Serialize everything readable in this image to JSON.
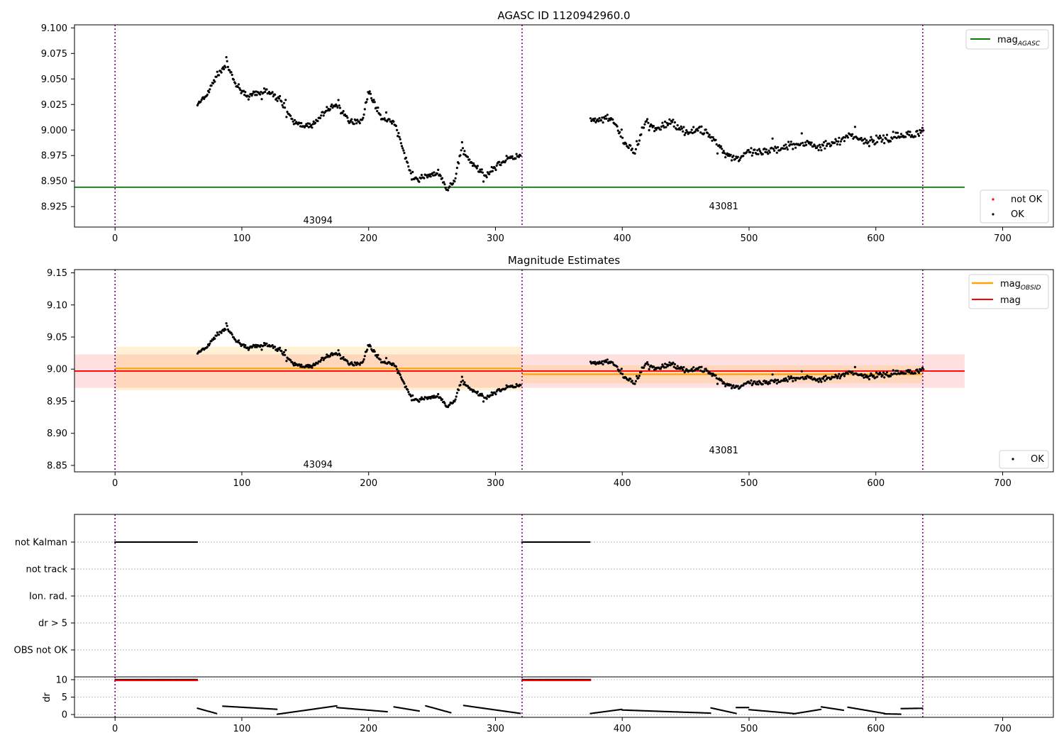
{
  "chart_data": [
    {
      "type": "scatter",
      "title": "AGASC ID 1120942960.0",
      "xlim": [
        -32,
        740
      ],
      "ylim": [
        8.905,
        9.103
      ],
      "xticks": [
        "0",
        "100",
        "200",
        "300",
        "400",
        "500",
        "600",
        "700"
      ],
      "yticks": [
        "8.925",
        "8.950",
        "8.975",
        "9.000",
        "9.025",
        "9.050",
        "9.075",
        "9.100"
      ],
      "obsid_boundaries": [
        0,
        321,
        637
      ],
      "obsid_labels": [
        {
          "text": "43094",
          "x": 160,
          "y": 8.912
        },
        {
          "text": "43081",
          "x": 480,
          "y": 8.926
        }
      ],
      "mag_agasc": {
        "value": 8.944,
        "x_range": [
          -32,
          670
        ],
        "color": "#008000"
      },
      "legend_upper": {
        "position": "upper right",
        "entries": [
          {
            "label": "mag",
            "sub": "AGASC",
            "color": "#008000"
          }
        ]
      },
      "legend_lower": {
        "position": "lower right",
        "entries": [
          {
            "label": "not OK",
            "color": "#ff0000"
          },
          {
            "label": "OK",
            "color": "#000000"
          }
        ]
      },
      "series": [
        {
          "name": "OK",
          "color": "#000000",
          "segments": [
            {
              "x_start": 65,
              "x_end": 320,
              "anchors": [
                [
                  65,
                  9.025
                ],
                [
                  72,
                  9.033
                ],
                [
                  80,
                  9.053
                ],
                [
                  88,
                  9.065
                ],
                [
                  95,
                  9.045
                ],
                [
                  105,
                  9.033
                ],
                [
                  120,
                  9.038
                ],
                [
                  130,
                  9.03
                ],
                [
                  140,
                  9.008
                ],
                [
                  155,
                  9.003
                ],
                [
                  165,
                  9.018
                ],
                [
                  175,
                  9.025
                ],
                [
                  185,
                  9.008
                ],
                [
                  195,
                  9.01
                ],
                [
                  200,
                  9.038
                ],
                [
                  210,
                  9.012
                ],
                [
                  220,
                  9.008
                ],
                [
                  228,
                  8.978
                ],
                [
                  235,
                  8.95
                ],
                [
                  245,
                  8.955
                ],
                [
                  255,
                  8.958
                ],
                [
                  262,
                  8.942
                ],
                [
                  268,
                  8.95
                ],
                [
                  273,
                  8.982
                ],
                [
                  283,
                  8.965
                ],
                [
                  292,
                  8.955
                ],
                [
                  300,
                  8.965
                ],
                [
                  310,
                  8.972
                ],
                [
                  320,
                  8.975
                ]
              ],
              "amp": 0.004,
              "step": 0.65
            },
            {
              "x_start": 375,
              "x_end": 638,
              "anchors": [
                [
                  375,
                  9.008
                ],
                [
                  385,
                  9.01
                ],
                [
                  393,
                  9.01
                ],
                [
                  400,
                  8.99
                ],
                [
                  410,
                  8.978
                ],
                [
                  418,
                  9.008
                ],
                [
                  425,
                  9.0
                ],
                [
                  440,
                  9.008
                ],
                [
                  450,
                  8.998
                ],
                [
                  460,
                  9.0
                ],
                [
                  470,
                  8.995
                ],
                [
                  480,
                  8.978
                ],
                [
                  490,
                  8.972
                ],
                [
                  500,
                  8.978
                ],
                [
                  515,
                  8.978
                ],
                [
                  530,
                  8.985
                ],
                [
                  545,
                  8.988
                ],
                [
                  555,
                  8.982
                ],
                [
                  570,
                  8.99
                ],
                [
                  580,
                  8.995
                ],
                [
                  595,
                  8.988
                ],
                [
                  610,
                  8.992
                ],
                [
                  625,
                  8.995
                ],
                [
                  638,
                  9.0
                ]
              ],
              "amp": 0.006,
              "step": 0.7
            }
          ]
        }
      ]
    },
    {
      "type": "scatter",
      "title": "Magnitude Estimates",
      "xlim": [
        -32,
        740
      ],
      "ylim": [
        8.84,
        9.155
      ],
      "xticks": [
        "0",
        "100",
        "200",
        "300",
        "400",
        "500",
        "600",
        "700"
      ],
      "yticks": [
        "8.85",
        "8.90",
        "8.95",
        "9.00",
        "9.05",
        "9.10",
        "9.15"
      ],
      "obsid_boundaries": [
        0,
        321,
        637
      ],
      "obsid_labels": [
        {
          "text": "43094",
          "x": 160,
          "y": 8.852
        },
        {
          "text": "43081",
          "x": 480,
          "y": 8.874
        }
      ],
      "mag": {
        "value": 8.997,
        "band": [
          8.971,
          9.023
        ],
        "x_range": [
          -32,
          670
        ],
        "color": "#ff0000"
      },
      "mag_obsid": [
        {
          "x_range": [
            0,
            321
          ],
          "value": 9.001,
          "band": [
            8.967,
            9.035
          ]
        },
        {
          "x_range": [
            321,
            637
          ],
          "value": 8.992,
          "band": [
            8.978,
            9.006
          ]
        }
      ],
      "legend_upper": {
        "position": "upper right",
        "entries": [
          {
            "label": "mag",
            "sub": "OBSID",
            "color": "#ffa500"
          },
          {
            "label": "mag",
            "color": "#ff0000"
          }
        ]
      },
      "legend_lower": {
        "position": "lower right",
        "entries": [
          {
            "label": "OK",
            "color": "#000000"
          }
        ]
      },
      "series": [
        {
          "name": "OK",
          "color": "#000000",
          "same_as": "panel_1"
        }
      ]
    },
    {
      "type": "scatter",
      "title": "",
      "xlim": [
        -32,
        740
      ],
      "flag_rows": [
        "not Kalman",
        "not track",
        "Ion. rad.",
        "dr > 5",
        "OBS not OK"
      ],
      "obsid_boundaries": [
        0,
        321,
        637
      ],
      "flag_segments": [
        {
          "row": "not Kalman",
          "x_range": [
            0,
            65
          ]
        },
        {
          "row": "not Kalman",
          "x_range": [
            321,
            375
          ]
        }
      ]
    },
    {
      "type": "scatter",
      "title": "",
      "ylabel": "dr",
      "xlim": [
        -32,
        740
      ],
      "ylim": [
        -0.8,
        10.8
      ],
      "xticks": [
        "0",
        "100",
        "200",
        "300",
        "400",
        "500",
        "600",
        "700"
      ],
      "yticks": [
        "0",
        "5",
        "10"
      ],
      "obsid_boundaries": [
        0,
        321,
        637
      ],
      "red_segments": [
        {
          "x_range": [
            0,
            65
          ],
          "value": 9.8
        },
        {
          "x_range": [
            321,
            375
          ],
          "value": 9.8
        }
      ],
      "dr_segments": [
        {
          "x_range": [
            65,
            80
          ],
          "values": [
            1.8,
            0.3
          ]
        },
        {
          "x_range": [
            85,
            128
          ],
          "values": [
            2.4,
            1.5
          ]
        },
        {
          "x_range": [
            128,
            175
          ],
          "values": [
            0.1,
            2.5
          ]
        },
        {
          "x_range": [
            175,
            215
          ],
          "values": [
            2.0,
            0.8
          ]
        },
        {
          "x_range": [
            220,
            240
          ],
          "values": [
            2.2,
            1.0
          ]
        },
        {
          "x_range": [
            245,
            265
          ],
          "values": [
            2.5,
            0.5
          ]
        },
        {
          "x_range": [
            275,
            320
          ],
          "values": [
            2.6,
            0.3
          ]
        },
        {
          "x_range": [
            375,
            400
          ],
          "values": [
            0.3,
            1.5
          ]
        },
        {
          "x_range": [
            400,
            470
          ],
          "values": [
            1.3,
            0.4
          ]
        },
        {
          "x_range": [
            470,
            490
          ],
          "values": [
            1.9,
            0.3
          ]
        },
        {
          "x_range": [
            490,
            500
          ],
          "values": [
            2.0,
            2.0
          ]
        },
        {
          "x_range": [
            500,
            535
          ],
          "values": [
            1.4,
            0.3
          ]
        },
        {
          "x_range": [
            535,
            557
          ],
          "values": [
            0.2,
            1.5
          ]
        },
        {
          "x_range": [
            557,
            575
          ],
          "values": [
            2.2,
            1.2
          ]
        },
        {
          "x_range": [
            578,
            607
          ],
          "values": [
            2.1,
            0.3
          ]
        },
        {
          "x_range": [
            607,
            620
          ],
          "values": [
            0.2,
            0.1
          ]
        },
        {
          "x_range": [
            620,
            637
          ],
          "values": [
            1.7,
            1.8
          ]
        }
      ]
    }
  ]
}
